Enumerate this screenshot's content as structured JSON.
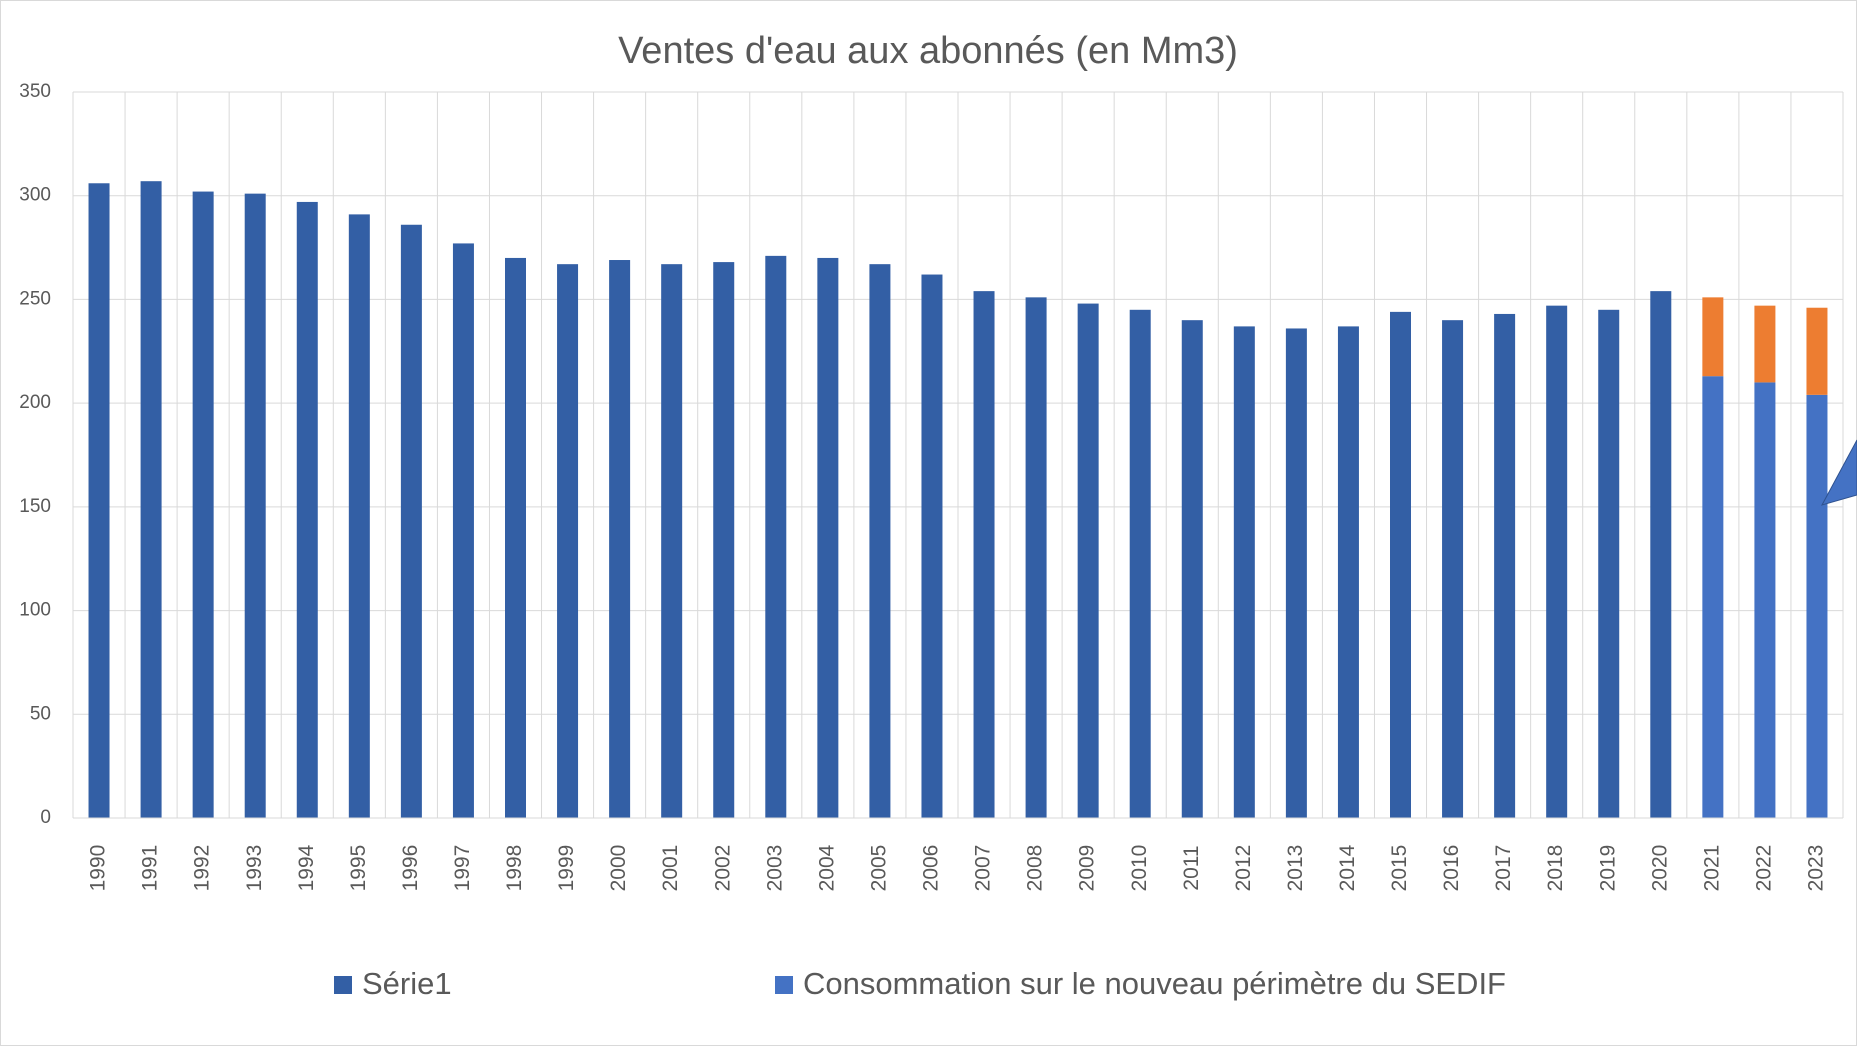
{
  "chart_data": {
    "type": "stacked_bar",
    "title": "Ventes d'eau aux abonnés (en Mm3)",
    "categories": [
      "1990",
      "1991",
      "1992",
      "1993",
      "1994",
      "1995",
      "1996",
      "1997",
      "1998",
      "1999",
      "2000",
      "2001",
      "2002",
      "2003",
      "2004",
      "2005",
      "2006",
      "2007",
      "2008",
      "2009",
      "2010",
      "2011",
      "2012",
      "2013",
      "2014",
      "2015",
      "2016",
      "2017",
      "2018",
      "2019",
      "2020",
      "2021",
      "2022",
      "2023"
    ],
    "series": [
      {
        "name": "Série1",
        "color": "#335fa5",
        "values": [
          306,
          307,
          302,
          301,
          297,
          291,
          286,
          277,
          270,
          267,
          269,
          267,
          268,
          271,
          270,
          267,
          262,
          254,
          251,
          248,
          245,
          240,
          237,
          236,
          237,
          244,
          240,
          243,
          247,
          245,
          254,
          null,
          null,
          null
        ]
      },
      {
        "name": "Consommation sur le nouveau périmètre du SEDIF",
        "color": "#4472c4",
        "values": [
          null,
          null,
          null,
          null,
          null,
          null,
          null,
          null,
          null,
          null,
          null,
          null,
          null,
          null,
          null,
          null,
          null,
          null,
          null,
          null,
          null,
          null,
          null,
          null,
          null,
          null,
          null,
          null,
          null,
          null,
          null,
          213,
          210,
          204
        ]
      },
      {
        "color": "#ed7d31",
        "values": [
          null,
          null,
          null,
          null,
          null,
          null,
          null,
          null,
          null,
          null,
          null,
          null,
          null,
          null,
          null,
          null,
          null,
          null,
          null,
          null,
          null,
          null,
          null,
          null,
          null,
          null,
          null,
          null,
          null,
          null,
          null,
          38,
          37,
          42
        ]
      }
    ],
    "ylim": [
      0,
      350
    ],
    "yticks": [
      0,
      50,
      100,
      150,
      200,
      250,
      300,
      350
    ],
    "grid": true
  }
}
